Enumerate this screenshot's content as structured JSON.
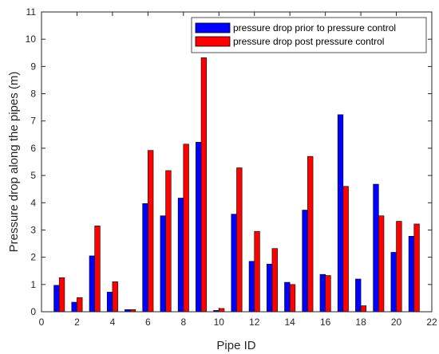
{
  "chart_data": {
    "type": "bar",
    "xlabel": "Pipe ID",
    "ylabel": "Pressure drop along the pipes (m)",
    "xlim": [
      0,
      22
    ],
    "ylim": [
      0,
      11
    ],
    "xticks": [
      0,
      2,
      4,
      6,
      8,
      10,
      12,
      14,
      16,
      18,
      20,
      22
    ],
    "yticks": [
      0,
      1,
      2,
      3,
      4,
      5,
      6,
      7,
      8,
      9,
      10,
      11
    ],
    "grid": false,
    "legend_position": "top-right",
    "x": [
      1,
      2,
      3,
      4,
      5,
      6,
      7,
      8,
      9,
      10,
      11,
      12,
      13,
      14,
      15,
      16,
      17,
      18,
      19,
      20,
      21
    ],
    "series": [
      {
        "name": "pressure drop prior to pressure control",
        "color": "#0000FF",
        "values": [
          0.97,
          0.35,
          2.05,
          0.72,
          0.08,
          3.97,
          3.52,
          4.17,
          6.22,
          0.05,
          3.58,
          1.85,
          1.75,
          1.08,
          3.73,
          1.37,
          7.23,
          1.2,
          4.68,
          2.18,
          2.77
        ]
      },
      {
        "name": "pressure drop post pressure control",
        "color": "#FF0000",
        "values": [
          1.25,
          0.52,
          3.15,
          1.1,
          0.08,
          5.92,
          5.18,
          6.15,
          9.32,
          0.12,
          5.28,
          2.95,
          2.32,
          1.0,
          5.7,
          1.33,
          4.6,
          0.22,
          3.52,
          3.32,
          3.22
        ]
      }
    ]
  }
}
